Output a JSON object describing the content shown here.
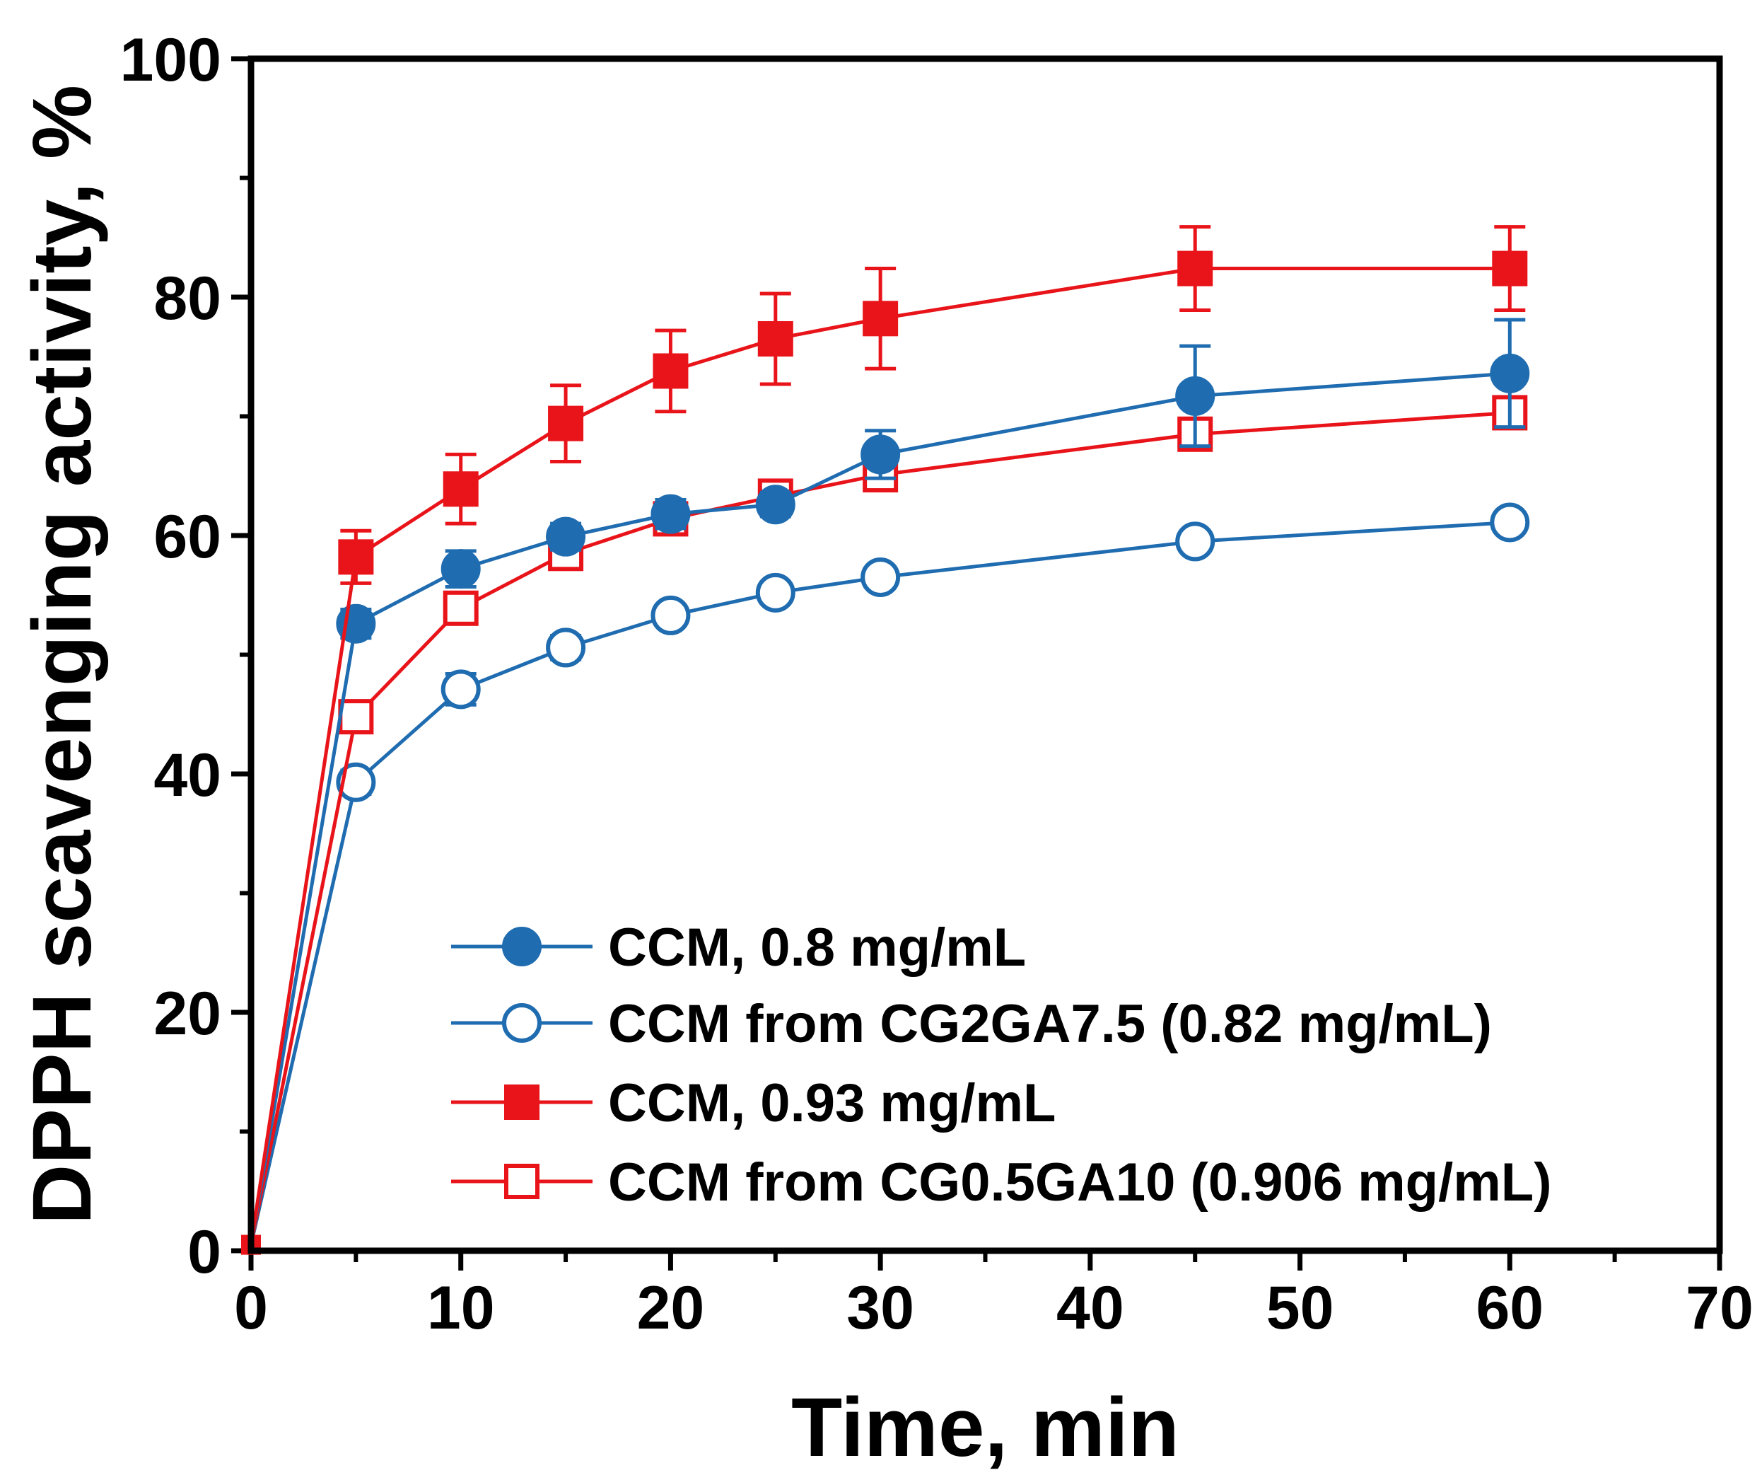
{
  "chart_data": {
    "type": "line",
    "xlabel": "Time, min",
    "ylabel": "DPPH scavenging activity, %",
    "xlim": [
      0,
      70
    ],
    "ylim": [
      0,
      100
    ],
    "xticks": [
      0,
      10,
      20,
      30,
      40,
      50,
      60,
      70
    ],
    "yticks": [
      0,
      20,
      40,
      60,
      80,
      100
    ],
    "grid": false,
    "legend_position": "bottom-right",
    "series": [
      {
        "name": "CCM, 0.8 mg/mL",
        "color": "#1f6cb0",
        "marker": "circle",
        "filled": true,
        "x": [
          0,
          5,
          10,
          15,
          20,
          25,
          30,
          45,
          60
        ],
        "y": [
          0.5,
          52.6,
          57.2,
          59.9,
          61.8,
          62.6,
          66.8,
          71.7,
          73.6
        ],
        "err": [
          0,
          1.2,
          1.5,
          1.1,
          1.2,
          1.0,
          2.0,
          4.2,
          4.5
        ]
      },
      {
        "name": "CCM from CG2GA7.5 (0.82 mg/mL)",
        "color": "#1f6cb0",
        "marker": "circle",
        "filled": false,
        "x": [
          0,
          5,
          10,
          15,
          20,
          25,
          30,
          45,
          60
        ],
        "y": [
          0.5,
          39.3,
          47.1,
          50.6,
          53.3,
          55.2,
          56.5,
          59.5,
          61.1
        ],
        "err": [
          0,
          1.0,
          1.3,
          1.0,
          0.9,
          0.9,
          0.8,
          0.8,
          0.8
        ]
      },
      {
        "name": "CCM, 0.93 mg/mL",
        "color": "#e8141a",
        "marker": "square",
        "filled": true,
        "x": [
          0,
          5,
          10,
          15,
          20,
          25,
          30,
          45,
          60
        ],
        "y": [
          0.5,
          58.2,
          63.9,
          69.4,
          73.8,
          76.5,
          78.2,
          82.4,
          82.4
        ],
        "err": [
          0,
          2.2,
          2.9,
          3.2,
          3.4,
          3.8,
          4.2,
          3.5,
          3.5
        ]
      },
      {
        "name": "CCM from CG0.5GA10 (0.906 mg/mL)",
        "color": "#e8141a",
        "marker": "square",
        "filled": false,
        "x": [
          0,
          5,
          10,
          15,
          20,
          25,
          30,
          45,
          60
        ],
        "y": [
          0.5,
          44.8,
          53.9,
          58.5,
          61.4,
          63.3,
          65.1,
          68.5,
          70.3
        ],
        "err": [
          0,
          1.0,
          1.0,
          1.0,
          1.0,
          1.0,
          1.3,
          1.3,
          1.3
        ]
      }
    ]
  }
}
